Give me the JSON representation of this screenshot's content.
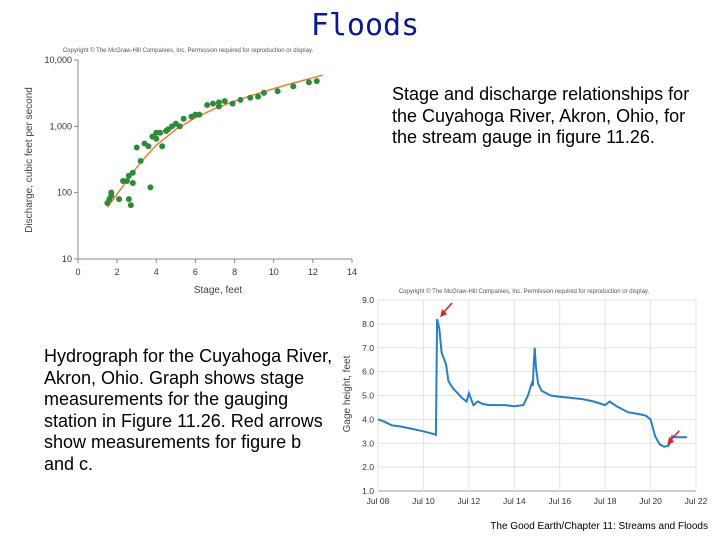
{
  "slide": {
    "title": "Floods",
    "caption_top": "Stage and discharge relationships for the Cuyahoga River, Akron, Ohio, for the stream gauge in figure 11.26.",
    "caption_bottom": "Hydrograph for the Cuyahoga River, Akron, Ohio.  Graph shows stage measurements for the gauging station in Figure 11.26.  Red arrows show measurements for figure b and c.",
    "footer": "The Good Earth/Chapter 11: Streams and Floods"
  },
  "colors": {
    "title": "#0a1a8c",
    "scatter_points": "#2e8b3a",
    "fit_curve": "#e8803a",
    "hydrograph_line": "#2a7fc4",
    "arrow": "#d42a2a",
    "axis_text": "#555555"
  },
  "chart_data": [
    {
      "type": "scatter",
      "copyright": "Copyright © The McGraw-Hill Companies, Inc. Permission required for reproduction or display.",
      "xlabel": "Stage, feet",
      "ylabel": "Discharge, cubic feet per second",
      "xlim": [
        0,
        14
      ],
      "ylim": [
        10,
        10000
      ],
      "y_scale": "log",
      "x_ticks": [
        "0",
        "2",
        "4",
        "6",
        "8",
        "10",
        "12",
        "14"
      ],
      "y_ticks": [
        "10",
        "100",
        "1,000",
        "10,000"
      ],
      "y_tick_values": [
        10,
        100,
        1000,
        10000
      ],
      "grid": false,
      "points": [
        {
          "x": 1.5,
          "y": 70
        },
        {
          "x": 1.6,
          "y": 80
        },
        {
          "x": 1.7,
          "y": 90
        },
        {
          "x": 1.7,
          "y": 100
        },
        {
          "x": 2.1,
          "y": 80
        },
        {
          "x": 2.3,
          "y": 150
        },
        {
          "x": 2.5,
          "y": 150
        },
        {
          "x": 2.6,
          "y": 80
        },
        {
          "x": 2.7,
          "y": 65
        },
        {
          "x": 2.6,
          "y": 180
        },
        {
          "x": 2.8,
          "y": 200
        },
        {
          "x": 2.8,
          "y": 140
        },
        {
          "x": 3.0,
          "y": 480
        },
        {
          "x": 3.2,
          "y": 300
        },
        {
          "x": 3.4,
          "y": 550
        },
        {
          "x": 3.6,
          "y": 500
        },
        {
          "x": 3.7,
          "y": 120
        },
        {
          "x": 3.8,
          "y": 700
        },
        {
          "x": 4.0,
          "y": 650
        },
        {
          "x": 4.0,
          "y": 800
        },
        {
          "x": 4.2,
          "y": 800
        },
        {
          "x": 4.3,
          "y": 500
        },
        {
          "x": 4.5,
          "y": 850
        },
        {
          "x": 4.6,
          "y": 900
        },
        {
          "x": 4.8,
          "y": 1000
        },
        {
          "x": 5.0,
          "y": 1100
        },
        {
          "x": 5.2,
          "y": 1000
        },
        {
          "x": 5.4,
          "y": 1300
        },
        {
          "x": 5.8,
          "y": 1400
        },
        {
          "x": 6.0,
          "y": 1500
        },
        {
          "x": 6.2,
          "y": 1500
        },
        {
          "x": 6.6,
          "y": 2100
        },
        {
          "x": 6.9,
          "y": 2200
        },
        {
          "x": 7.2,
          "y": 2300
        },
        {
          "x": 7.5,
          "y": 2400
        },
        {
          "x": 7.2,
          "y": 2000
        },
        {
          "x": 7.9,
          "y": 2200
        },
        {
          "x": 8.3,
          "y": 2500
        },
        {
          "x": 8.8,
          "y": 2700
        },
        {
          "x": 9.2,
          "y": 2800
        },
        {
          "x": 9.5,
          "y": 3200
        },
        {
          "x": 10.2,
          "y": 3400
        },
        {
          "x": 11.0,
          "y": 4000
        },
        {
          "x": 11.8,
          "y": 4600
        },
        {
          "x": 12.2,
          "y": 4800
        }
      ],
      "fit_curve": {
        "x": [
          1.5,
          2.0,
          2.5,
          3.0,
          3.5,
          4.0,
          5.0,
          6.0,
          7.0,
          8.0,
          9.0,
          10.0,
          11.0,
          12.0,
          12.5
        ],
        "y": [
          60,
          95,
          150,
          240,
          360,
          520,
          900,
          1350,
          1850,
          2400,
          3000,
          3700,
          4500,
          5400,
          5900
        ]
      }
    },
    {
      "type": "line",
      "copyright": "Copyright © The McGraw-Hill Companies, Inc. Permission required for reproduction or display.",
      "xlabel": "",
      "ylabel": "Gage height, feet",
      "xlim": [
        8,
        22
      ],
      "ylim": [
        1.0,
        9.0
      ],
      "x_ticks": [
        "Jul 08",
        "Jul 10",
        "Jul 12",
        "Jul 14",
        "Jul 16",
        "Jul 18",
        "Jul 20",
        "Jul 22"
      ],
      "x_tick_values": [
        8,
        10,
        12,
        14,
        16,
        18,
        20,
        22
      ],
      "y_ticks": [
        "1.0",
        "2.0",
        "3.0",
        "4.0",
        "5.0",
        "6.0",
        "7.0",
        "8.0",
        "9.0"
      ],
      "y_tick_values": [
        1,
        2,
        3,
        4,
        5,
        6,
        7,
        8,
        9
      ],
      "grid": true,
      "series": [
        {
          "x": [
            8.0,
            8.3,
            8.6,
            9.0,
            9.5,
            10.0,
            10.4,
            10.55,
            10.6,
            10.7,
            10.8,
            11.0,
            11.1,
            11.3,
            11.5,
            11.7,
            11.9,
            12.0,
            12.2,
            12.4,
            12.6,
            12.9,
            13.2,
            13.6,
            14.0,
            14.4,
            14.6,
            14.8,
            14.82,
            14.85,
            14.9,
            14.95,
            15.05,
            15.2,
            15.4,
            15.6,
            16.0,
            16.5,
            17.0,
            17.5,
            18.0,
            18.2,
            18.5,
            18.8,
            19.0,
            19.3,
            19.6,
            19.8,
            20.0,
            20.2,
            20.4,
            20.6,
            20.8,
            20.95,
            21.1,
            21.3,
            21.6
          ],
          "y": [
            4.0,
            3.9,
            3.75,
            3.7,
            3.6,
            3.5,
            3.4,
            3.35,
            8.2,
            7.8,
            6.8,
            6.3,
            5.6,
            5.3,
            5.1,
            4.9,
            4.75,
            5.1,
            4.6,
            4.75,
            4.65,
            4.6,
            4.6,
            4.6,
            4.55,
            4.6,
            5.0,
            5.6,
            5.4,
            6.2,
            7.0,
            6.2,
            5.5,
            5.2,
            5.1,
            5.0,
            4.95,
            4.9,
            4.85,
            4.75,
            4.6,
            4.75,
            4.55,
            4.4,
            4.3,
            4.25,
            4.2,
            4.15,
            4.0,
            3.3,
            2.95,
            2.85,
            2.9,
            3.3,
            3.25,
            3.25,
            3.25
          ]
        }
      ],
      "arrows_at": [
        {
          "x": 10.6,
          "y": 8.2
        },
        {
          "x": 20.6,
          "y": 2.85
        }
      ]
    }
  ]
}
